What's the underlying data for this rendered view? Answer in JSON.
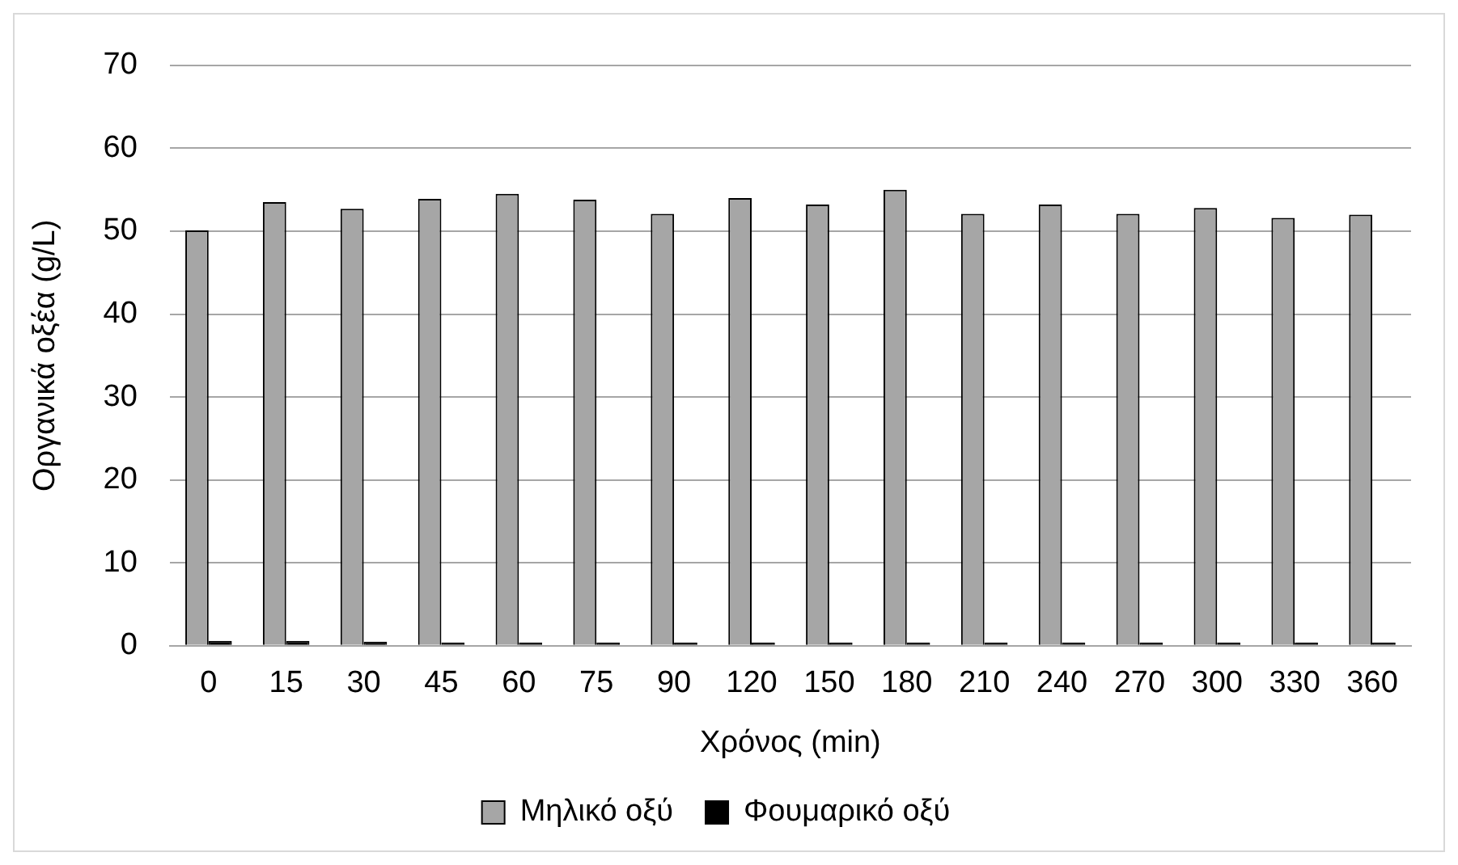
{
  "chart_data": {
    "type": "bar",
    "xlabel": "Χρόνος (min)",
    "ylabel": "Οργανικά οξέα (g/L)",
    "categories": [
      "0",
      "15",
      "30",
      "45",
      "60",
      "75",
      "90",
      "120",
      "150",
      "180",
      "210",
      "240",
      "270",
      "300",
      "330",
      "360"
    ],
    "series": [
      {
        "name": "Μηλικό οξύ",
        "color": "#a6a6a6",
        "values": [
          50.1,
          53.5,
          52.7,
          53.9,
          54.5,
          53.8,
          52.1,
          54.0,
          53.2,
          55.0,
          52.1,
          53.2,
          52.1,
          52.8,
          51.6,
          52.0
        ]
      },
      {
        "name": "Φουμαρικό οξύ",
        "color": "#000000",
        "values": [
          0.6,
          0.6,
          0.5,
          0.4,
          0.4,
          0.4,
          0.4,
          0.4,
          0.4,
          0.4,
          0.4,
          0.4,
          0.4,
          0.4,
          0.4,
          0.4
        ]
      }
    ],
    "ylim": [
      0,
      70
    ],
    "yticks": [
      0,
      10,
      20,
      30,
      40,
      50,
      60,
      70
    ],
    "grid": "y",
    "legend": "bottom"
  }
}
